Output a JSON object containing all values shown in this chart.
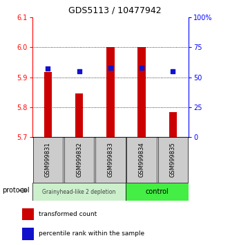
{
  "title": "GDS5113 / 10477942",
  "samples": [
    "GSM999831",
    "GSM999832",
    "GSM999833",
    "GSM999834",
    "GSM999835"
  ],
  "bar_values": [
    5.918,
    5.845,
    6.001,
    6.001,
    5.783
  ],
  "bar_base": 5.7,
  "percentile_values": [
    57,
    55,
    58,
    58,
    55
  ],
  "percentile_scale_max": 100,
  "ylim_left": [
    5.7,
    6.1
  ],
  "ylim_right": [
    0,
    100
  ],
  "yticks_left": [
    5.7,
    5.8,
    5.9,
    6.0,
    6.1
  ],
  "yticks_right": [
    0,
    25,
    50,
    75,
    100
  ],
  "ytick_labels_right": [
    "0",
    "25",
    "50",
    "75",
    "100%"
  ],
  "bar_color": "#cc0000",
  "dot_color": "#1111cc",
  "group1_label": "Grainyhead-like 2 depletion",
  "group2_label": "control",
  "group1_color": "#ccf0cc",
  "group2_color": "#44ee44",
  "protocol_label": "protocol",
  "legend_bar_label": "transformed count",
  "legend_dot_label": "percentile rank within the sample",
  "background_color": "#ffffff",
  "sample_box_color": "#cccccc",
  "bar_width": 0.25
}
